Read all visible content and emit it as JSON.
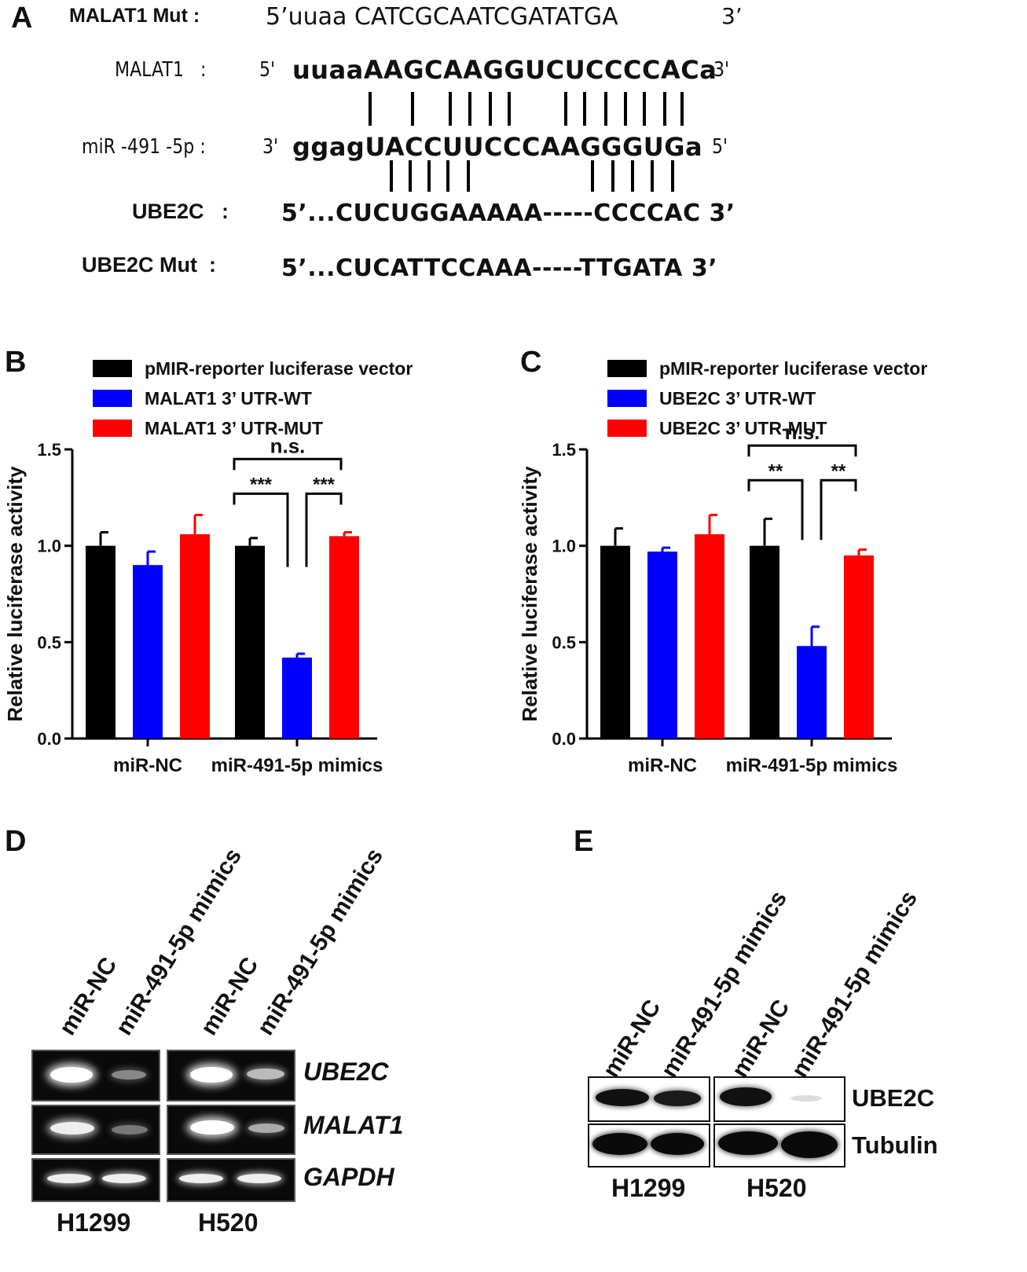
{
  "panel_a": {
    "letter": "A",
    "rows": [
      {
        "label": "MALAT1 Mut :",
        "seq": "5’uuaa CATCGCAATCGATATGA",
        "end": "3’"
      },
      {
        "label": "MALAT1   :",
        "seq_prefix": "5' ",
        "seq": "uuaaAAGCAAGGUCUCCCCACa",
        "end": "3'"
      },
      {
        "label": "miR -491 -5p :",
        "seq_prefix": "3' ",
        "seq": "ggagUACCUUCCCAAGGGUGa",
        "end": "5'"
      },
      {
        "label": "UBE2C   :",
        "seq": "5’...CUCUGGAAAAA-----CCCCAC 3’"
      },
      {
        "label": "UBE2C Mut  :",
        "seq": "5’...CUCATTCCAAA-----TTGATA 3’"
      }
    ]
  },
  "chart_data": [
    {
      "panel": "B",
      "type": "bar",
      "categories": [
        "miR-NC",
        "miR-491-5p mimics"
      ],
      "ylabel": "Relative luciferase activity",
      "ylim": [
        0,
        1.5
      ],
      "yticks": [
        "0.0",
        "0.5",
        "1.0",
        "1.5"
      ],
      "legend_position": "top",
      "series": [
        {
          "name": "pMIR-reporter luciferase vector",
          "color": "#000000",
          "values": [
            1.0,
            1.0
          ],
          "errors": [
            0.07,
            0.04
          ]
        },
        {
          "name": "MALAT1 3’ UTR-WT",
          "color": "#0000ff",
          "values": [
            0.9,
            0.42
          ],
          "errors": [
            0.07,
            0.02
          ]
        },
        {
          "name": "MALAT1 3’ UTR-MUT",
          "color": "#ff0000",
          "values": [
            1.06,
            1.05
          ],
          "errors": [
            0.1,
            0.02
          ]
        }
      ],
      "annotations": [
        "***",
        "***",
        "n.s."
      ]
    },
    {
      "panel": "C",
      "type": "bar",
      "categories": [
        "miR-NC",
        "miR-491-5p mimics"
      ],
      "ylabel": "Relative luciferase activity",
      "ylim": [
        0,
        1.5
      ],
      "yticks": [
        "0.0",
        "0.5",
        "1.0",
        "1.5"
      ],
      "legend_position": "top",
      "series": [
        {
          "name": "pMIR-reporter luciferase vector",
          "color": "#000000",
          "values": [
            1.0,
            1.0
          ],
          "errors": [
            0.09,
            0.14
          ]
        },
        {
          "name": "UBE2C 3’ UTR-WT",
          "color": "#0000ff",
          "values": [
            0.97,
            0.48
          ],
          "errors": [
            0.02,
            0.1
          ]
        },
        {
          "name": "UBE2C 3’ UTR-MUT",
          "color": "#ff0000",
          "values": [
            1.06,
            0.95
          ],
          "errors": [
            0.1,
            0.03
          ]
        }
      ],
      "annotations": [
        "**",
        "**",
        "n.s."
      ]
    }
  ],
  "panel_d": {
    "letter": "D",
    "lanes": [
      "miR-NC",
      "miR-491-5p mimics",
      "miR-NC",
      "miR-491-5p mimics"
    ],
    "genes": [
      "UBE2C",
      "MALAT1",
      "GAPDH"
    ],
    "cells": [
      "H1299",
      "H520"
    ]
  },
  "panel_e": {
    "letter": "E",
    "lanes": [
      "miR-NC",
      "miR-491-5p mimics",
      "miR-NC",
      "miR-491-5p mimics"
    ],
    "proteins": [
      "UBE2C",
      "Tubulin"
    ],
    "cells": [
      "H1299",
      "H520"
    ]
  }
}
